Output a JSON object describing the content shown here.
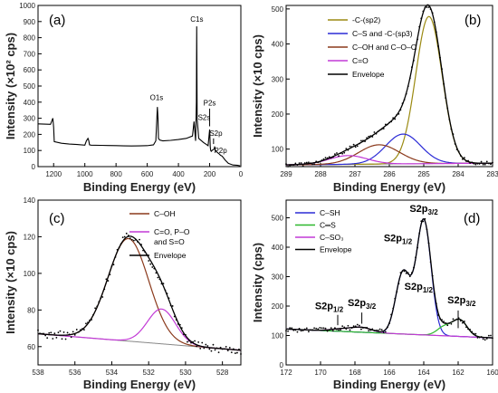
{
  "chart_data": [
    {
      "panel": "(a)",
      "type": "line",
      "xlabel": "Binding Energy (eV)",
      "ylabel": "Intensity (×10² cps)",
      "xlim": [
        1300,
        0
      ],
      "ylim": [
        0,
        1000
      ],
      "xticks": [
        1200,
        1000,
        800,
        600,
        400,
        200,
        0
      ],
      "yticks": [
        0,
        100,
        200,
        300,
        400,
        500,
        600,
        700,
        800,
        900,
        1000
      ],
      "x": [
        1300,
        1220,
        1205,
        1200,
        1196,
        1150,
        1100,
        1050,
        1000,
        990,
        980,
        975,
        970,
        960,
        900,
        850,
        800,
        750,
        700,
        650,
        600,
        560,
        545,
        535,
        531,
        528,
        520,
        500,
        450,
        400,
        350,
        310,
        300,
        290,
        285,
        283,
        280,
        270,
        240,
        225,
        210,
        200,
        196,
        193,
        190,
        185,
        170,
        168,
        164,
        160,
        140,
        130,
        120,
        100,
        80,
        50,
        20,
        5
      ],
      "y": [
        265,
        262,
        300,
        245,
        155,
        145,
        140,
        137,
        133,
        160,
        175,
        162,
        135,
        133,
        132,
        131,
        130,
        129,
        128,
        129,
        130,
        135,
        160,
        370,
        300,
        175,
        165,
        160,
        163,
        168,
        175,
        190,
        280,
        160,
        400,
        870,
        295,
        175,
        150,
        140,
        130,
        230,
        120,
        100,
        95,
        100,
        110,
        125,
        105,
        95,
        80,
        70,
        65,
        40,
        20,
        10,
        8,
        5
      ],
      "annotations": [
        {
          "text": "C1s",
          "x": 282,
          "y": 900
        },
        {
          "text": "O1s",
          "x": 540,
          "y": 412
        },
        {
          "text": "P2s",
          "x": 200,
          "y": 380
        },
        {
          "text": "S2s",
          "x": 235,
          "y": 290
        },
        {
          "text": "S2p",
          "x": 160,
          "y": 190
        },
        {
          "text": "P2p",
          "x": 130,
          "y": 85,
          "color": "#3a3aee"
        }
      ]
    },
    {
      "panel": "(b)",
      "type": "line",
      "xlabel": "Binding Energy (eV)",
      "ylabel": "Intensity (×10 cps)",
      "xlim": [
        289,
        283
      ],
      "ylim": [
        50,
        510
      ],
      "xticks": [
        289,
        288,
        287,
        286,
        285,
        284,
        283
      ],
      "yticks": [
        100,
        200,
        300,
        400,
        500
      ],
      "legend": [
        "-C-(sp2)",
        "C–S and -C-(sp3)",
        "C–OH and C–O–C",
        "C=O",
        "Envelope"
      ],
      "series": [
        {
          "name": "-C-(sp2)",
          "color": "#9b8a12",
          "center": 284.85,
          "fwhm": 0.9,
          "height": 420
        },
        {
          "name": "C–S and -C-(sp3)",
          "color": "#2b2bd6",
          "center": 285.6,
          "fwhm": 1.2,
          "height": 85
        },
        {
          "name": "C–OH and C–O–C",
          "color": "#8b3a1c",
          "center": 286.3,
          "fwhm": 1.4,
          "height": 55
        },
        {
          "name": "C=O",
          "color": "#c23ad6",
          "center": 287.2,
          "fwhm": 1.3,
          "height": 25
        }
      ],
      "baseline": {
        "start": 55,
        "end": 60,
        "color": "#888888"
      },
      "envelope_color": "#000000",
      "data_points_color": "#000000"
    },
    {
      "panel": "(c)",
      "type": "line",
      "xlabel": "Binding Energy (eV)",
      "ylabel": "Intensity (×10 cps)",
      "xlim": [
        538,
        527
      ],
      "ylim": [
        50,
        140
      ],
      "xticks": [
        538,
        536,
        534,
        532,
        530,
        528
      ],
      "yticks": [
        60,
        80,
        100,
        120,
        140
      ],
      "legend": [
        "C–OH",
        "C=O, P–O and S=O",
        "Envelope"
      ],
      "series": [
        {
          "name": "C–OH",
          "color": "#8b3a1c",
          "center": 533.1,
          "fwhm": 2.6,
          "height": 56
        },
        {
          "name": "C=O, P–O and S=O",
          "color": "#c23ad6",
          "center": 531.3,
          "fwhm": 1.8,
          "height": 19
        }
      ],
      "baseline": {
        "start": 67,
        "end": 58,
        "color": "#888888"
      },
      "envelope_color": "#000000"
    },
    {
      "panel": "(d)",
      "type": "line",
      "xlabel": "Binding Energy (eV)",
      "ylabel": "Intensity (cps)",
      "xlim": [
        172,
        160
      ],
      "ylim": [
        0,
        560
      ],
      "xticks": [
        172,
        170,
        168,
        166,
        164,
        162,
        160
      ],
      "yticks": [
        0,
        100,
        200,
        300,
        400,
        500
      ],
      "legend": [
        "C–SH",
        "C═S",
        "C–SO₃",
        "Envelope"
      ],
      "series": [
        {
          "name": "C–SH",
          "color": "#2b2bd6",
          "peaks": [
            {
              "center": 164.0,
              "fwhm": 1.0,
              "height": 390
            },
            {
              "center": 165.2,
              "fwhm": 1.0,
              "height": 210
            }
          ]
        },
        {
          "name": "C═S",
          "color": "#2db82d",
          "peaks": [
            {
              "center": 161.9,
              "fwhm": 1.0,
              "height": 55
            },
            {
              "center": 162.8,
              "fwhm": 1.0,
              "height": 30
            }
          ]
        },
        {
          "name": "C–SO₃",
          "color": "#c23ad6",
          "peaks": [
            {
              "center": 167.6,
              "fwhm": 1.4,
              "height": 16
            },
            {
              "center": 168.8,
              "fwhm": 1.4,
              "height": 8
            }
          ]
        }
      ],
      "baseline": {
        "start": 122,
        "end": 92,
        "color": "#888888"
      },
      "envelope_color": "#000000",
      "annotations": [
        {
          "text": "S2p",
          "sub": "3/2",
          "x": 164.0,
          "y": 520
        },
        {
          "text": "S2p",
          "sub": "1/2",
          "x": 165.5,
          "y": 420
        },
        {
          "text": "S2p",
          "sub": "1/2",
          "x": 164.3,
          "y": 255
        },
        {
          "text": "S2p",
          "sub": "3/2",
          "x": 161.8,
          "y": 210
        },
        {
          "text": "S2p",
          "sub": "1/2",
          "x": 169.5,
          "y": 190
        },
        {
          "text": "S2p",
          "sub": "3/2",
          "x": 167.6,
          "y": 200
        }
      ]
    }
  ]
}
